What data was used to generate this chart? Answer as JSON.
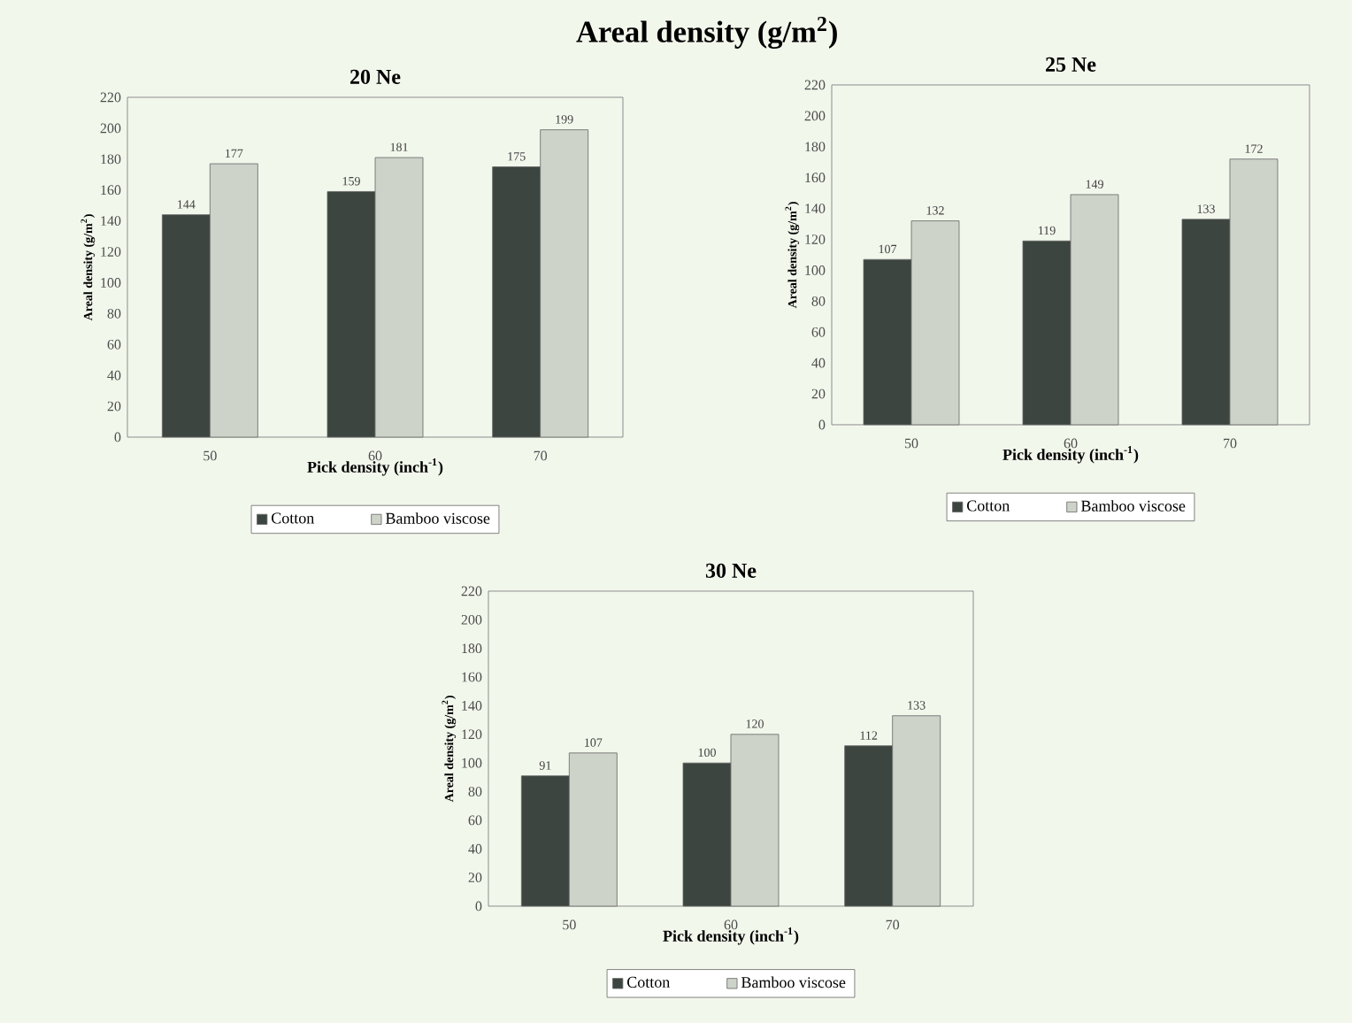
{
  "chart_data": [
    {
      "type": "bar",
      "title": "20 Ne",
      "annotations": [
        "Areal density (g/m$^{2}$)"
      ],
      "xlabel": "Pick density (inch$^{-1}$)",
      "ylabel": "Areal density (g/m$^{2}$)",
      "categories": [
        "50",
        "60",
        "70"
      ],
      "series": [
        {
          "name": "Cotton",
          "color": "#3c4540",
          "values": [
            144,
            159,
            175
          ]
        },
        {
          "name": "Bamboo viscose",
          "color": "#cdd3c8",
          "values": [
            177,
            181,
            199
          ]
        }
      ],
      "ylim": [
        0,
        220
      ],
      "yticks": [
        0,
        20,
        40,
        60,
        80,
        100,
        120,
        140,
        160,
        180,
        200,
        220
      ],
      "data_labels": true,
      "legend": "bottom"
    },
    {
      "type": "bar",
      "title": "25 Ne",
      "xlabel": "Pick density (inch$^{-1}$)",
      "ylabel": "Areal density (g/m$^{2}$)",
      "categories": [
        "50",
        "60",
        "70"
      ],
      "series": [
        {
          "name": "Cotton",
          "color": "#3c4540",
          "values": [
            107,
            119,
            133
          ]
        },
        {
          "name": "Bamboo viscose",
          "color": "#cdd3c8",
          "values": [
            132,
            149,
            172
          ]
        }
      ],
      "ylim": [
        0,
        220
      ],
      "yticks": [
        0,
        20,
        40,
        60,
        80,
        100,
        120,
        140,
        160,
        180,
        200,
        220
      ],
      "data_labels": true,
      "legend": "bottom"
    },
    {
      "type": "bar",
      "title": "30 Ne",
      "xlabel": "Pick density (inch$^{-1}$)",
      "ylabel": "Areal density (g/m$^{2}$)",
      "categories": [
        "50",
        "60",
        "70"
      ],
      "series": [
        {
          "name": "Cotton",
          "color": "#3c4540",
          "values": [
            91,
            100,
            112
          ]
        },
        {
          "name": "Bamboo viscose",
          "color": "#cdd3c8",
          "values": [
            107,
            120,
            133
          ]
        }
      ],
      "ylim": [
        0,
        220
      ],
      "yticks": [
        0,
        20,
        40,
        60,
        80,
        100,
        120,
        140,
        160,
        180,
        200,
        220
      ],
      "data_labels": true,
      "legend": "bottom"
    }
  ]
}
